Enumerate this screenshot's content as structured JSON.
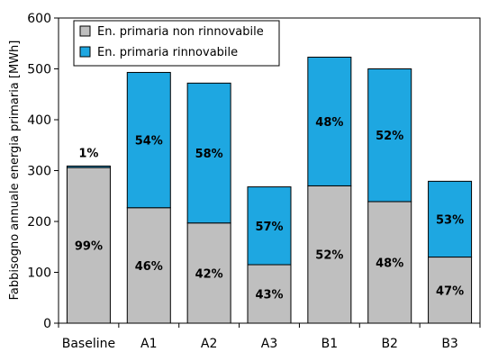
{
  "chart_data": {
    "type": "bar",
    "stacked": true,
    "categories": [
      "Baseline",
      "A1",
      "A2",
      "A3",
      "B1",
      "B2",
      "B3"
    ],
    "series": [
      {
        "name": "En. primaria non rinnovabile",
        "color": "#bfbfbf",
        "values": [
          306,
          227,
          197,
          115,
          270,
          239,
          130
        ],
        "labels": [
          "99%",
          "46%",
          "42%",
          "43%",
          "52%",
          "48%",
          "47%"
        ]
      },
      {
        "name": "En. primaria rinnovabile",
        "color": "#1ea7e1",
        "values": [
          3,
          266,
          275,
          153,
          253,
          261,
          149
        ],
        "labels": [
          "1%",
          "54%",
          "58%",
          "57%",
          "48%",
          "52%",
          "53%"
        ]
      }
    ],
    "ylabel": "Fabbisogno annuale energia primaria [MWh]",
    "xlabel": "",
    "ylim": [
      0,
      600
    ],
    "yticks": [
      0,
      100,
      200,
      300,
      400,
      500,
      600
    ],
    "grid": false,
    "legend": "top-left"
  }
}
